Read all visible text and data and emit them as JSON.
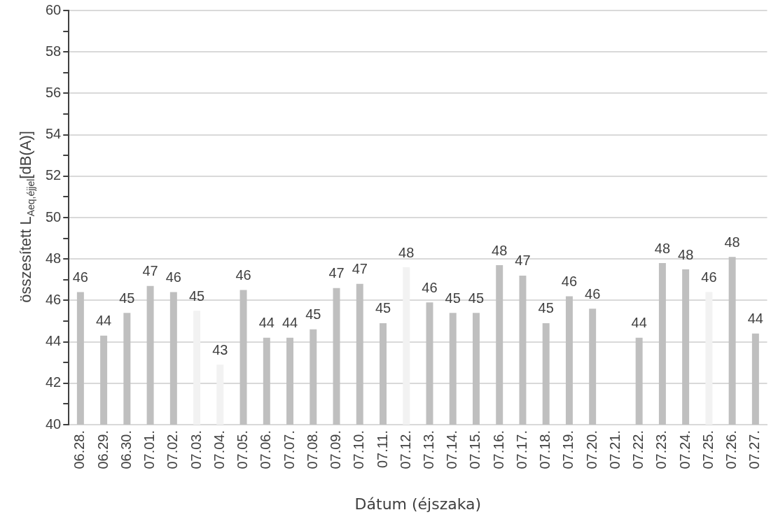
{
  "chart_data": {
    "type": "bar",
    "xlabel": "Dátum (éjszaka)",
    "ylabel": "összesített  L$_{Aeq,éjjel}$[dB(A)]",
    "categories": [
      "06.28.",
      "06.29.",
      "06.30.",
      "07.01.",
      "07.02.",
      "07.03.",
      "07.04.",
      "07.05.",
      "07.06.",
      "07.07.",
      "07.08.",
      "07.09.",
      "07.10.",
      "07.11.",
      "07.12.",
      "07.13.",
      "07.14.",
      "07.15.",
      "07.16.",
      "07.17.",
      "07.18.",
      "07.19.",
      "07.20.",
      "07.21.",
      "07.22.",
      "07.23.",
      "07.24.",
      "07.25.",
      "07.26.",
      "07.27."
    ],
    "series": [
      {
        "values": [
          46.4,
          44.3,
          45.4,
          46.7,
          46.4,
          45.5,
          42.9,
          46.5,
          44.2,
          44.2,
          44.6,
          46.6,
          46.8,
          44.9,
          47.6,
          45.9,
          45.4,
          45.4,
          47.7,
          47.2,
          44.9,
          46.2,
          45.6,
          null,
          44.2,
          47.8,
          47.5,
          46.4,
          48.1,
          44.4
        ],
        "colors": [
          "#bfbfbf",
          "#bfbfbf",
          "#bfbfbf",
          "#bfbfbf",
          "#bfbfbf",
          "#f2f2f2",
          "#f2f2f2",
          "#bfbfbf",
          "#bfbfbf",
          "#bfbfbf",
          "#bfbfbf",
          "#bfbfbf",
          "#bfbfbf",
          "#bfbfbf",
          "#f2f2f2",
          "#bfbfbf",
          "#bfbfbf",
          "#bfbfbf",
          "#bfbfbf",
          "#bfbfbf",
          "#bfbfbf",
          "#bfbfbf",
          "#bfbfbf",
          "#f2f2f2",
          "#bfbfbf",
          "#bfbfbf",
          "#bfbfbf",
          "#f2f2f2",
          "#bfbfbf",
          "#bfbfbf"
        ],
        "value_labels": [
          "46",
          "44",
          "45",
          "47",
          "46",
          "45",
          "43",
          "46",
          "44",
          "44",
          "45",
          "47",
          "47",
          "45",
          "48",
          "46",
          "45",
          "45",
          "48",
          "47",
          "45",
          "46",
          "46",
          null,
          "44",
          "48",
          "48",
          "46",
          "48",
          "44"
        ]
      }
    ],
    "ylim": [
      40,
      60
    ],
    "yticks": [
      40,
      {
        "value": 41,
        "label": null
      },
      42,
      {
        "value": 43,
        "label": null
      },
      44,
      {
        "value": 45,
        "label": null
      },
      46,
      {
        "value": 47,
        "label": null
      },
      48,
      {
        "value": 49,
        "label": null
      },
      50,
      {
        "value": 51,
        "label": null
      },
      52,
      {
        "value": 53,
        "label": null
      },
      54,
      {
        "value": 55,
        "label": null
      },
      56,
      {
        "value": 57,
        "label": null
      },
      58,
      {
        "value": 59,
        "label": null
      },
      60
    ],
    "grid": "y",
    "legend": false
  }
}
